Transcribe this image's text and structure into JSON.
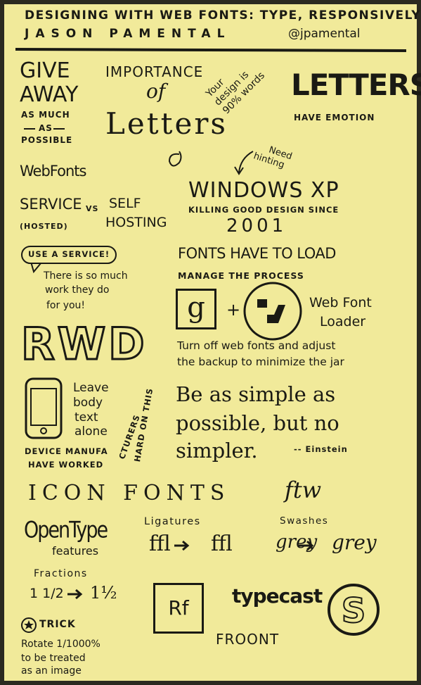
{
  "header": {
    "title": "DESIGNING WITH WEB FONTS: TYPE, RESPONSIVELY",
    "author": "JASON PAMENTAL",
    "handle": "@jpamental"
  },
  "give_away": [
    "GIVE",
    "AWAY",
    "AS MUCH",
    "AS",
    "POSSIBLE"
  ],
  "importance": [
    "IMPORTANCE",
    "of",
    "Letters"
  ],
  "design_words": [
    "Your",
    "design is",
    "90% words"
  ],
  "letters": {
    "title": "LETTERS",
    "subtitle": "HAVE EMOTION"
  },
  "need_hinting": [
    "Need",
    "hinting"
  ],
  "windows": {
    "title": "WINDOWS XP",
    "subtitle": "KILLING GOOD DESIGN SINCE",
    "year": "2001"
  },
  "web_fonts": {
    "title": "WebFonts",
    "service": "SERVICE",
    "service_note": "(HOSTED)",
    "vs": "VS",
    "self": [
      "SELF",
      "HOSTING"
    ]
  },
  "use_service": {
    "bubble": "USE A SERVICE!",
    "text": [
      "There is so much",
      "work they do",
      "for you!"
    ]
  },
  "load": {
    "title": "FONTS HAVE TO LOAD",
    "subtitle": "MANAGE THE PROCESS",
    "google": "g",
    "plus": "+",
    "loader": [
      "Web Font",
      "Loader"
    ],
    "note": [
      "Turn off web fonts and adjust",
      "the backup to minimize the jar"
    ]
  },
  "rwd": {
    "title": "RWD",
    "leave": [
      "Leave",
      "body",
      "text",
      "alone"
    ],
    "manufacturers": [
      "DEVICE MANUFA",
      "CTURERS",
      "HAVE WORKED",
      "HARD ON THIS"
    ]
  },
  "quote": {
    "text": [
      "Be as simple as",
      "possible, but no",
      "simpler."
    ],
    "author": "-- Einstein"
  },
  "icon_fonts": {
    "title": "ICON FONTS",
    "ftw": "ftw"
  },
  "opentype": {
    "title": "OpenType",
    "subtitle": "features"
  },
  "ligatures": {
    "title": "Ligatures",
    "before": "ffl",
    "after": "ﬄ"
  },
  "swashes": {
    "title": "Swashes",
    "before": "grey",
    "after": "grey"
  },
  "fractions": {
    "title": "Fractions",
    "before": "1 1/2",
    "after": "1½"
  },
  "trick": {
    "title": "TRICK",
    "text": [
      "Rotate 1/1000%",
      "to be treated",
      "as an image"
    ]
  },
  "tools": {
    "rf": "Rf",
    "typecast": "typecast",
    "froont": "FROONT"
  }
}
